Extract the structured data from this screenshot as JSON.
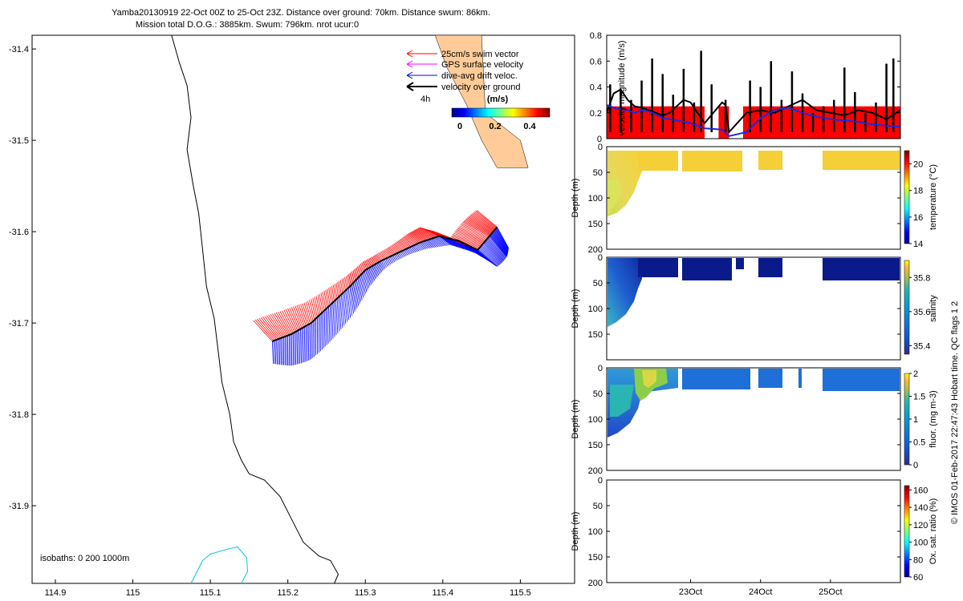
{
  "header": {
    "line1": "Yamba20130919 22-Oct 00Z to 25-Oct 23Z. Distance over ground: 70km. Distance swum: 86km.",
    "line2": "Mission total D.O.G.: 3885km. Swum: 796km. nrot ucur:0"
  },
  "side_note": "© IMOS 01-Feb-2017 22:47:43 Hobart time. QC flags 1  2",
  "colors": {
    "swim": "#ff0000",
    "gps": "#ff00ff",
    "drift": "#0000ff",
    "dog": "#000000",
    "coast": "#000000",
    "isobath200": "#00c8d0",
    "land": "#ffcc99",
    "velocity_bar": "#ff0000",
    "temperature_fill": "#f4cf38",
    "salinity_fill": "#0a1a8a",
    "fluor_fill": "#1e6fd8"
  },
  "chart_data": [
    {
      "type": "scatter",
      "name": "map",
      "xlim": [
        114.87,
        115.57
      ],
      "ylim": [
        -31.985,
        -31.385
      ],
      "xticks": [
        "114.9",
        "115",
        "115.1",
        "115.2",
        "115.3",
        "115.4",
        "115.5"
      ],
      "yticks": [
        "-31.4",
        "-31.5",
        "-31.6",
        "-31.7",
        "-31.8",
        "-31.9"
      ],
      "legend": {
        "items": [
          {
            "label": "25cm/s swim vector",
            "color_key": "swim"
          },
          {
            "label": "GPS surface velocity",
            "color_key": "gps"
          },
          {
            "label": "dive-avg drift veloc.",
            "color_key": "drift"
          },
          {
            "label": "velocity over ground",
            "color_key": "dog"
          }
        ],
        "time_label": "4h",
        "colorbar_title": "(m/s)",
        "colorbar_ticks": [
          "0",
          "0.2",
          "0.4"
        ]
      },
      "isobath_label": "isobaths: 0   200  1000m",
      "coastline": [
        [
          115.05,
          -31.385
        ],
        [
          115.06,
          -31.415
        ],
        [
          115.07,
          -31.44
        ],
        [
          115.075,
          -31.475
        ],
        [
          115.07,
          -31.51
        ],
        [
          115.078,
          -31.55
        ],
        [
          115.085,
          -31.58
        ],
        [
          115.09,
          -31.62
        ],
        [
          115.095,
          -31.66
        ],
        [
          115.105,
          -31.695
        ],
        [
          115.11,
          -31.73
        ],
        [
          115.115,
          -31.765
        ],
        [
          115.125,
          -31.8
        ],
        [
          115.13,
          -31.83
        ],
        [
          115.14,
          -31.85
        ],
        [
          115.15,
          -31.865
        ],
        [
          115.17,
          -31.872
        ],
        [
          115.19,
          -31.89
        ],
        [
          115.205,
          -31.915
        ],
        [
          115.22,
          -31.94
        ],
        [
          115.24,
          -31.955
        ],
        [
          115.255,
          -31.96
        ],
        [
          115.265,
          -31.975
        ],
        [
          115.26,
          -31.985
        ]
      ],
      "isobath200": [
        [
          115.075,
          -31.985
        ],
        [
          115.09,
          -31.96
        ],
        [
          115.1,
          -31.953
        ],
        [
          115.12,
          -31.948
        ],
        [
          115.135,
          -31.945
        ],
        [
          115.147,
          -31.957
        ],
        [
          115.148,
          -31.972
        ],
        [
          115.14,
          -31.985
        ]
      ],
      "track": [
        [
          115.18,
          -31.72
        ],
        [
          115.205,
          -31.712
        ],
        [
          115.23,
          -31.7
        ],
        [
          115.255,
          -31.68
        ],
        [
          115.28,
          -31.66
        ],
        [
          115.3,
          -31.642
        ],
        [
          115.32,
          -31.632
        ],
        [
          115.345,
          -31.622
        ],
        [
          115.37,
          -31.612
        ],
        [
          115.395,
          -31.605
        ],
        [
          115.42,
          -31.61
        ],
        [
          115.445,
          -31.62
        ],
        [
          115.46,
          -31.605
        ],
        [
          115.47,
          -31.595
        ]
      ],
      "shore_land": [
        [
          115.39,
          -31.385
        ],
        [
          115.45,
          -31.385
        ],
        [
          115.455,
          -31.47
        ],
        [
          115.5,
          -31.5
        ],
        [
          115.51,
          -31.53
        ],
        [
          115.47,
          -31.53
        ],
        [
          115.45,
          -31.5
        ],
        [
          115.43,
          -31.46
        ],
        [
          115.405,
          -31.42
        ]
      ]
    },
    {
      "type": "line",
      "name": "velocity",
      "ylabel": "velocity magnitude (m/s)",
      "ylim": [
        0,
        0.8
      ],
      "yticks": [
        "0",
        "0.2",
        "0.4",
        "0.6",
        "0.8"
      ],
      "xlim": [
        21.8,
        26.0
      ],
      "bar_level": 0.25,
      "gaps": [
        [
          23.2,
          23.4
        ],
        [
          23.55,
          23.75
        ]
      ],
      "series": [
        {
          "color_key": "drift",
          "x": [
            21.8,
            21.95,
            22.1,
            22.2,
            22.3,
            22.4,
            22.5,
            22.6,
            22.7,
            22.8,
            22.9,
            23.0,
            23.1,
            23.2,
            23.45,
            23.55,
            23.8,
            24.0,
            24.2,
            24.4,
            24.6,
            24.8,
            25.0,
            25.2,
            25.4,
            25.6,
            25.8,
            26.0
          ],
          "y": [
            0.26,
            0.23,
            0.22,
            0.2,
            0.22,
            0.21,
            0.19,
            0.16,
            0.15,
            0.14,
            0.13,
            0.12,
            0.1,
            0.08,
            0.07,
            0.02,
            0.05,
            0.16,
            0.22,
            0.24,
            0.2,
            0.17,
            0.15,
            0.14,
            0.13,
            0.11,
            0.1,
            0.09
          ]
        },
        {
          "color_key": "dog",
          "x": [
            21.8,
            21.9,
            22.0,
            22.1,
            22.2,
            22.3,
            22.4,
            22.5,
            22.6,
            22.7,
            22.8,
            22.9,
            23.0,
            23.1,
            23.2,
            23.45,
            23.5,
            23.55,
            23.8,
            24.0,
            24.2,
            24.4,
            24.6,
            24.8,
            25.0,
            25.2,
            25.4,
            25.6,
            25.8,
            26.0
          ],
          "y": [
            0.2,
            0.35,
            0.38,
            0.3,
            0.25,
            0.24,
            0.22,
            0.2,
            0.18,
            0.2,
            0.25,
            0.3,
            0.28,
            0.2,
            0.12,
            0.28,
            0.26,
            0.05,
            0.2,
            0.22,
            0.2,
            0.25,
            0.3,
            0.22,
            0.2,
            0.18,
            0.22,
            0.2,
            0.15,
            0.22
          ]
        }
      ],
      "spikes": [
        [
          21.85,
          0.42
        ],
        [
          22.0,
          0.38
        ],
        [
          22.15,
          0.3
        ],
        [
          22.3,
          0.45
        ],
        [
          22.45,
          0.62
        ],
        [
          22.6,
          0.5
        ],
        [
          22.75,
          0.34
        ],
        [
          22.9,
          0.54
        ],
        [
          23.05,
          0.28
        ],
        [
          23.15,
          0.68
        ],
        [
          23.3,
          0.42
        ],
        [
          23.5,
          0.3
        ],
        [
          23.85,
          0.45
        ],
        [
          24.0,
          0.4
        ],
        [
          24.15,
          0.6
        ],
        [
          24.3,
          0.3
        ],
        [
          24.45,
          0.52
        ],
        [
          24.6,
          0.35
        ],
        [
          24.75,
          0.2
        ],
        [
          24.9,
          0.25
        ],
        [
          25.05,
          0.3
        ],
        [
          25.2,
          0.55
        ],
        [
          25.35,
          0.36
        ],
        [
          25.5,
          0.2
        ],
        [
          25.65,
          0.28
        ],
        [
          25.8,
          0.58
        ],
        [
          25.9,
          0.62
        ]
      ]
    },
    {
      "type": "heatmap",
      "name": "temperature",
      "ylabel": "Depth (m)",
      "yticks": [
        "0",
        "50",
        "100",
        "150",
        "200"
      ],
      "ylim": [
        0,
        200
      ],
      "colorbar_label": "temperature (°C)",
      "colorbar_ticks": [
        "14",
        "16",
        "18",
        "20"
      ],
      "colorbar_range": [
        14,
        21
      ]
    },
    {
      "type": "heatmap",
      "name": "salinity",
      "ylabel": "Depth (m)",
      "yticks": [
        "0",
        "50",
        "100",
        "150"
      ],
      "ylim": [
        0,
        200
      ],
      "colorbar_label": "salinity",
      "colorbar_ticks": [
        "35.4",
        "35.6",
        "35.8"
      ],
      "colorbar_range": [
        35.35,
        35.9
      ]
    },
    {
      "type": "heatmap",
      "name": "fluor",
      "ylabel": "Depth (m)",
      "yticks": [
        "0",
        "50",
        "100",
        "150",
        "200"
      ],
      "ylim": [
        0,
        200
      ],
      "colorbar_label": "fluor. (mg m-3)",
      "colorbar_ticks": [
        "0",
        "0.5",
        "1",
        "1.5",
        "2"
      ],
      "colorbar_range": [
        0,
        2
      ]
    },
    {
      "type": "heatmap",
      "name": "oxygen",
      "ylabel": "Depth (m)",
      "yticks": [
        "0",
        "50",
        "100",
        "150",
        "200"
      ],
      "ylim": [
        0,
        200
      ],
      "xticks": [
        "23Oct",
        "24Oct",
        "25Oct"
      ],
      "colorbar_label": "Ox. sat. ratio (%)",
      "colorbar_ticks": [
        "60",
        "80",
        "100",
        "120",
        "140",
        "160"
      ],
      "colorbar_range": [
        60,
        165
      ]
    }
  ]
}
